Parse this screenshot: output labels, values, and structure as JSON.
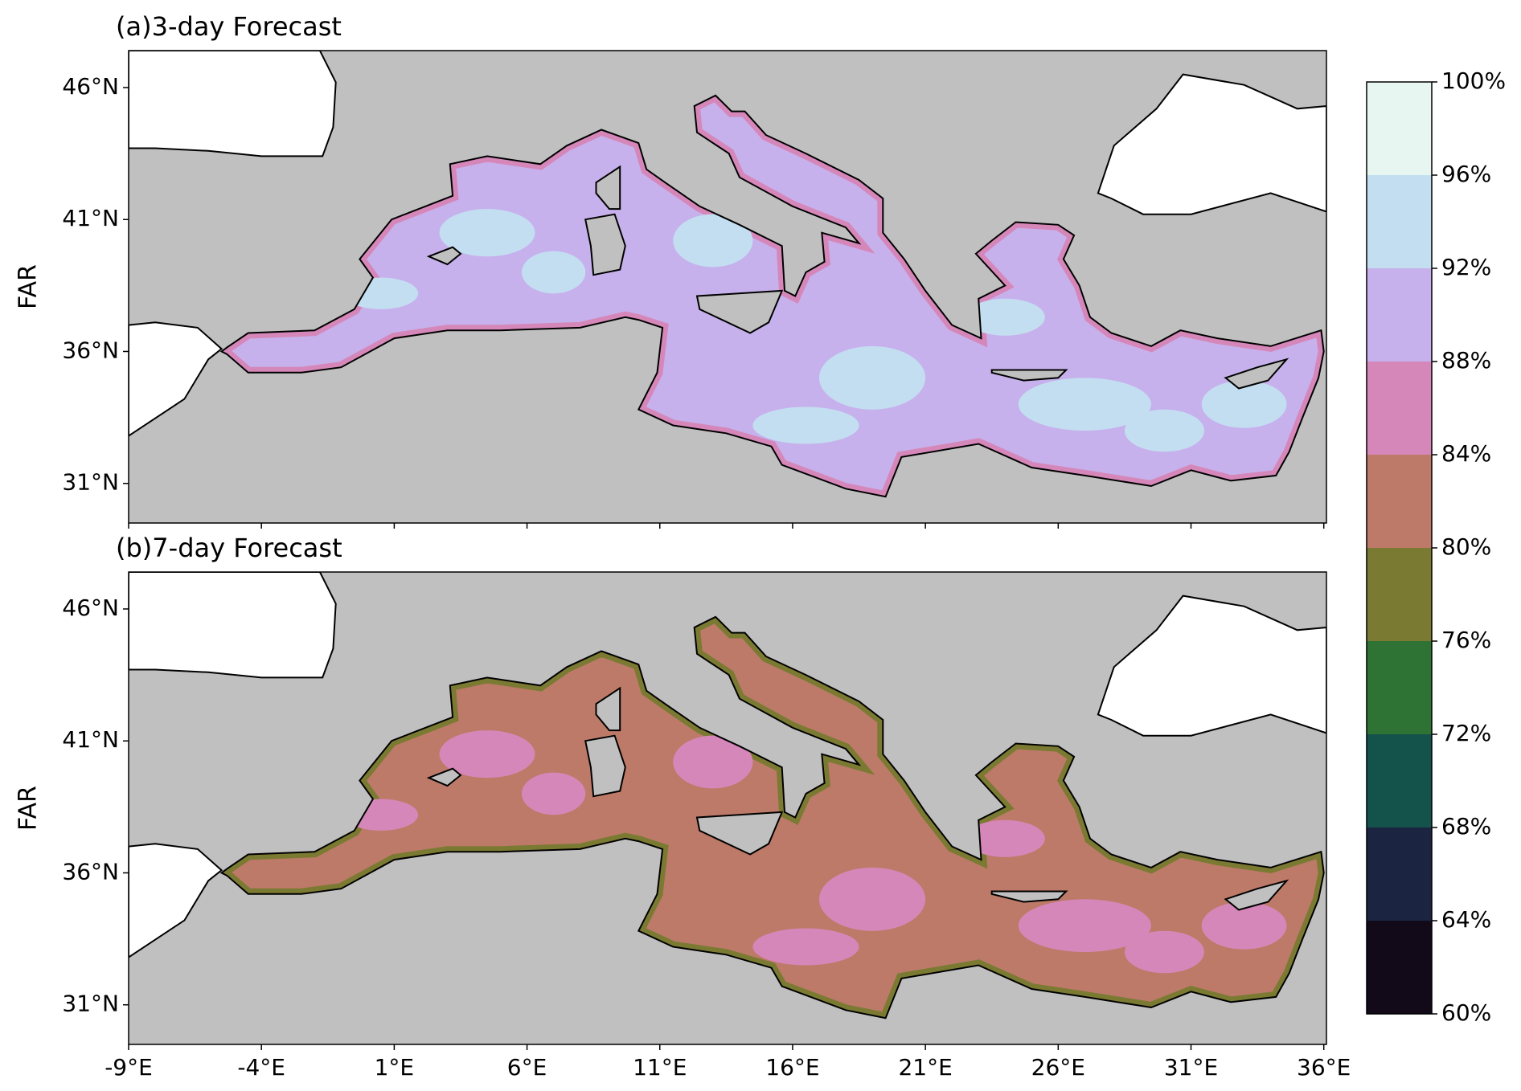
{
  "chart_data": {
    "type": "map",
    "panels": [
      {
        "title": "(a)3-day Forecast",
        "ylabel": "FAR"
      },
      {
        "title": "(b)7-day Forecast",
        "ylabel": "FAR"
      }
    ],
    "xlim": [
      -9,
      36.1
    ],
    "ylim": [
      29.5,
      47.4
    ],
    "xticks": [
      {
        "value": -9,
        "label": "-9°E"
      },
      {
        "value": -4,
        "label": "-4°E"
      },
      {
        "value": 1,
        "label": "1°E"
      },
      {
        "value": 6,
        "label": "6°E"
      },
      {
        "value": 11,
        "label": "11°E"
      },
      {
        "value": 16,
        "label": "16°E"
      },
      {
        "value": 21,
        "label": "21°E"
      },
      {
        "value": 26,
        "label": "26°E"
      },
      {
        "value": 31,
        "label": "31°E"
      },
      {
        "value": 36,
        "label": "36°E"
      }
    ],
    "yticks": [
      {
        "value": 31,
        "label": "31°N"
      },
      {
        "value": 36,
        "label": "36°N"
      },
      {
        "value": 41,
        "label": "41°N"
      },
      {
        "value": 46,
        "label": "46°N"
      }
    ],
    "colorbar": {
      "lim": [
        60,
        100
      ],
      "ticks": [
        {
          "value": 60,
          "label": "60%"
        },
        {
          "value": 64,
          "label": "64%"
        },
        {
          "value": 68,
          "label": "68%"
        },
        {
          "value": 72,
          "label": "72%"
        },
        {
          "value": 76,
          "label": "76%"
        },
        {
          "value": 80,
          "label": "80%"
        },
        {
          "value": 84,
          "label": "84%"
        },
        {
          "value": 88,
          "label": "88%"
        },
        {
          "value": 92,
          "label": "92%"
        },
        {
          "value": 96,
          "label": "96%"
        },
        {
          "value": 100,
          "label": "100%"
        }
      ],
      "colors": [
        "#120a18",
        "#1b2440",
        "#14524c",
        "#2e7333",
        "#7b7a33",
        "#bd7a68",
        "#d687b9",
        "#c6b1ec",
        "#c4def1",
        "#e7f6f1"
      ]
    }
  }
}
